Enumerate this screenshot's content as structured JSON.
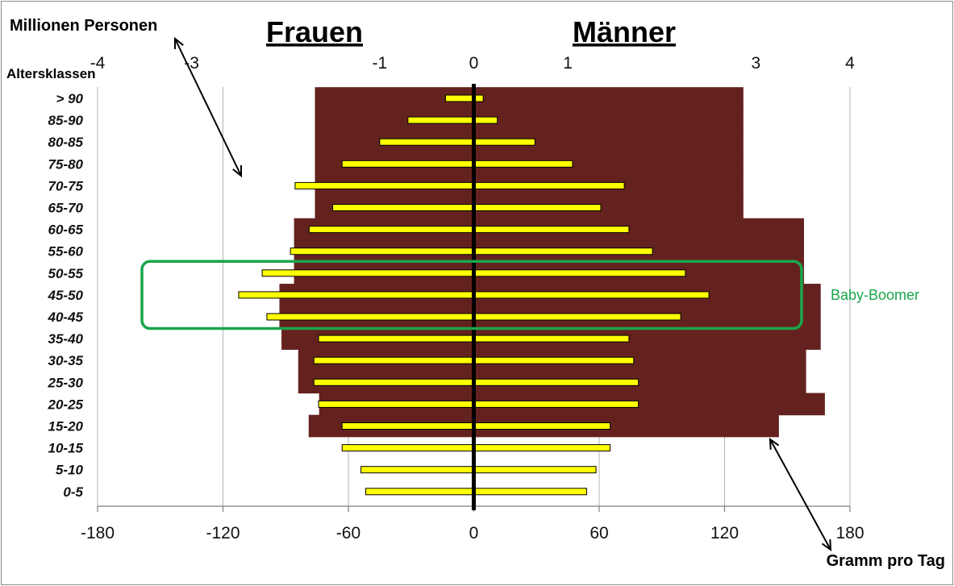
{
  "chart_data": {
    "type": "bar",
    "title_left": "Frauen",
    "title_right": "Männer",
    "top_axis_label": "Millionen Personen",
    "category_axis_label": "Altersklassen",
    "bottom_axis_label": "Gramm pro Tag",
    "categories": [
      "> 90",
      "85-90",
      "80-85",
      "75-80",
      "70-75",
      "65-70",
      "60-65",
      "55-60",
      "50-55",
      "45-50",
      "40-45",
      "35-40",
      "30-35",
      "25-30",
      "20-25",
      "15-20",
      "10-15",
      "5-10",
      "0-5"
    ],
    "top_axis": {
      "unit": "Millionen Personen",
      "range": [
        -4,
        4
      ],
      "ticks": [
        -4,
        -3,
        -1,
        0,
        1,
        3,
        4
      ]
    },
    "bottom_axis": {
      "unit": "Gramm pro Tag",
      "range": [
        -180,
        180
      ],
      "ticks": [
        -180,
        -120,
        -60,
        0,
        60,
        120,
        180
      ]
    },
    "series": [
      {
        "name": "Frauen",
        "axis": "bottom",
        "color": "#64221f",
        "values": [
          -76,
          -76,
          -76,
          -76,
          -76,
          -76,
          -86,
          -86,
          -86,
          -93,
          -93,
          -92,
          -84,
          -84,
          -74,
          -79,
          0,
          0,
          0
        ]
      },
      {
        "name": "Männer",
        "axis": "bottom",
        "color": "#64221f",
        "values": [
          129,
          129,
          129,
          129,
          129,
          129,
          158,
          158,
          158,
          166,
          166,
          166,
          159,
          159,
          168,
          146,
          0,
          0,
          0
        ]
      },
      {
        "name": "Frauen",
        "axis": "top",
        "color": "#ffff00",
        "values": [
          -0.3,
          -0.7,
          -1.0,
          -1.4,
          -1.9,
          -1.5,
          -1.75,
          -1.95,
          -2.25,
          -2.5,
          -2.2,
          -1.65,
          -1.7,
          -1.7,
          -1.65,
          -1.4,
          -1.4,
          -1.2,
          -1.15
        ]
      },
      {
        "name": "Männer",
        "axis": "top",
        "color": "#ffff00",
        "values": [
          0.1,
          0.25,
          0.65,
          1.05,
          1.6,
          1.35,
          1.65,
          1.9,
          2.25,
          2.5,
          2.2,
          1.65,
          1.7,
          1.75,
          1.75,
          1.45,
          1.45,
          1.3,
          1.2
        ]
      }
    ],
    "annotations": [
      {
        "text": "Baby-Boomer",
        "categories": [
          "50-55",
          "45-50",
          "40-45"
        ],
        "color": "#1aa64a"
      }
    ],
    "grid": true,
    "legend": "none"
  }
}
